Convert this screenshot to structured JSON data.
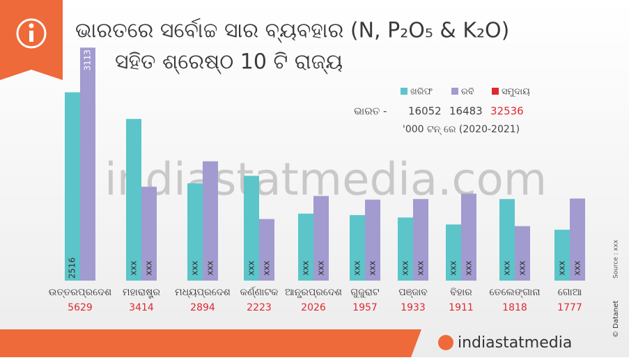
{
  "chart_data": {
    "type": "bar",
    "title": "ଭାରତରେ ସର୍ବୋଚ୍ଚ ସାର ବ୍ୟବହାର (N, P₂O₅ & K₂O)",
    "subtitle": "ସହିତ ଶ୍ରେଷ୍ଠ 10 ଟି ରାଜ୍ୟ",
    "categories": [
      "ଉତ୍ତରପ୍ରଦେଶ",
      "ମହାରାଷ୍ଟ୍ର",
      "ମଧ୍ୟପ୍ରଦେଶ",
      "କର୍ଣ୍ଣାଟକ",
      "ଆନ୍ଧ୍ରପ୍ରଦେଶ",
      "ଗୁଜୁରାଟ",
      "ପଞ୍ଜାବ",
      "ବିହାର",
      "ତେଲେଙ୍ଗାନା",
      "ଗୋଆ"
    ],
    "series": [
      {
        "name": "ଖରିଫ",
        "color": "#5bc5c9",
        "values": [
          2516,
          2160,
          1300,
          1400,
          895,
          875,
          843,
          750,
          1090,
          680
        ],
        "value_labels": [
          "2516",
          "xxx",
          "xxx",
          "xxx",
          "xxx",
          "xxx",
          "xxx",
          "xxx",
          "xxx",
          "xxx"
        ]
      },
      {
        "name": "ରବି",
        "color": "#a29bd0",
        "values": [
          3113,
          1254,
          1594,
          823,
          1131,
          1082,
          1090,
          1161,
          728,
          1097
        ],
        "value_labels": [
          "3113",
          "xxx",
          "xxx",
          "xxx",
          "xxx",
          "xxx",
          "xxx",
          "xxx",
          "xxx",
          "xxx"
        ]
      }
    ],
    "total_name": "ସମୁଦାୟ",
    "total_color": "#e0282f",
    "totals": [
      5629,
      3414,
      2894,
      2223,
      2026,
      1957,
      1933,
      1911,
      1818,
      1777
    ],
    "india_label": "ଭାରତ -",
    "india_values": [
      16052,
      16483,
      32536
    ],
    "unit_note": "'000 ଟନ୍ ରେ (2020-2021)",
    "source": "Source : xxx",
    "watermark": "indiastatmedia.com",
    "footer_brand": "indiastatmedia",
    "credit": "© Datanet"
  }
}
